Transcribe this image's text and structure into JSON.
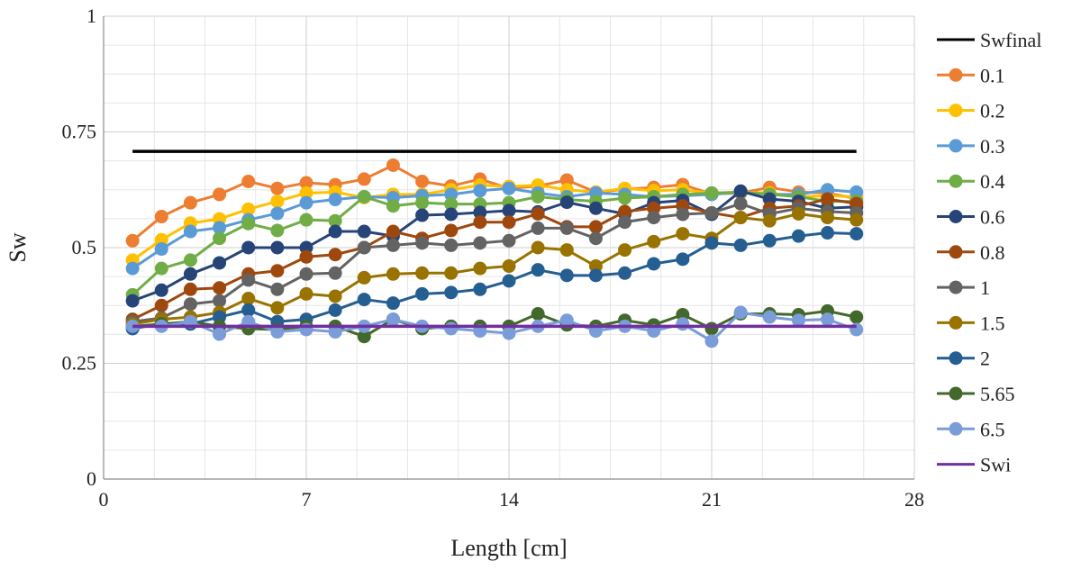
{
  "chart_data": {
    "type": "line",
    "xlabel": "Length [cm]",
    "ylabel": "Sw",
    "xlim": [
      0,
      28
    ],
    "ylim": [
      0,
      1
    ],
    "xticks": [
      "0",
      "7",
      "14",
      "21",
      "28"
    ],
    "yticks": [
      "0",
      "0.25",
      "0.5",
      "0.75",
      "1"
    ],
    "grid": true,
    "legend_position": "right",
    "x": [
      1,
      2,
      3,
      4,
      5,
      6,
      7,
      8,
      9,
      10,
      11,
      12,
      13,
      14,
      15,
      16,
      17,
      18,
      19,
      20,
      21,
      22,
      23,
      24,
      25,
      26
    ],
    "series": [
      {
        "name": "Swfinal",
        "color": "#000000",
        "markers": false,
        "x": [
          1,
          26
        ],
        "values": [
          0.708,
          0.708
        ]
      },
      {
        "name": "0.1",
        "color": "#ED7D31",
        "markers": true,
        "values": [
          0.515,
          0.567,
          0.597,
          0.615,
          0.643,
          0.628,
          0.64,
          0.636,
          0.648,
          0.678,
          0.643,
          0.633,
          0.648,
          0.628,
          0.633,
          0.646,
          0.62,
          0.626,
          0.63,
          0.636,
          0.616,
          0.618,
          0.63,
          0.62,
          0.618,
          0.606
        ]
      },
      {
        "name": "0.2",
        "color": "#FFC000",
        "markers": true,
        "values": [
          0.473,
          0.517,
          0.553,
          0.562,
          0.583,
          0.6,
          0.618,
          0.62,
          0.608,
          0.615,
          0.615,
          0.625,
          0.635,
          0.632,
          0.635,
          0.625,
          0.62,
          0.628,
          0.623,
          0.625,
          0.618,
          0.62,
          0.618,
          0.61,
          0.612,
          0.61
        ]
      },
      {
        "name": "0.3",
        "color": "#5B9BD5",
        "markers": true,
        "values": [
          0.455,
          0.497,
          0.535,
          0.543,
          0.56,
          0.574,
          0.597,
          0.604,
          0.61,
          0.608,
          0.612,
          0.615,
          0.623,
          0.628,
          0.618,
          0.61,
          0.618,
          0.615,
          0.61,
          0.612,
          0.615,
          0.62,
          0.615,
          0.615,
          0.625,
          0.62
        ]
      },
      {
        "name": "0.4",
        "color": "#70AD47",
        "markers": true,
        "values": [
          0.398,
          0.455,
          0.473,
          0.52,
          0.552,
          0.537,
          0.56,
          0.558,
          0.61,
          0.59,
          0.597,
          0.594,
          0.594,
          0.597,
          0.61,
          0.604,
          0.6,
          0.607,
          0.61,
          0.615,
          0.618,
          0.62,
          0.615,
          0.61,
          0.6,
          0.6
        ]
      },
      {
        "name": "0.6",
        "color": "#264478",
        "markers": true,
        "values": [
          0.385,
          0.408,
          0.443,
          0.467,
          0.5,
          0.5,
          0.5,
          0.535,
          0.535,
          0.525,
          0.57,
          0.572,
          0.576,
          0.58,
          0.577,
          0.598,
          0.585,
          0.573,
          0.597,
          0.602,
          0.572,
          0.622,
          0.605,
          0.6,
          0.585,
          0.588
        ]
      },
      {
        "name": "0.8",
        "color": "#9E480E",
        "markers": true,
        "values": [
          0.345,
          0.375,
          0.41,
          0.413,
          0.443,
          0.45,
          0.48,
          0.485,
          0.5,
          0.535,
          0.52,
          0.537,
          0.555,
          0.555,
          0.573,
          0.545,
          0.545,
          0.578,
          0.585,
          0.59,
          0.575,
          0.565,
          0.585,
          0.59,
          0.605,
          0.595
        ]
      },
      {
        "name": "1",
        "color": "#636363",
        "markers": true,
        "values": [
          0.34,
          0.348,
          0.378,
          0.385,
          0.43,
          0.41,
          0.443,
          0.445,
          0.5,
          0.505,
          0.51,
          0.505,
          0.51,
          0.515,
          0.542,
          0.542,
          0.52,
          0.555,
          0.565,
          0.572,
          0.575,
          0.595,
          0.573,
          0.585,
          0.578,
          0.575
        ]
      },
      {
        "name": "1.5",
        "color": "#997300",
        "markers": true,
        "values": [
          0.335,
          0.345,
          0.35,
          0.36,
          0.39,
          0.37,
          0.4,
          0.395,
          0.435,
          0.443,
          0.445,
          0.445,
          0.455,
          0.46,
          0.5,
          0.495,
          0.46,
          0.495,
          0.513,
          0.53,
          0.52,
          0.565,
          0.558,
          0.573,
          0.565,
          0.56
        ]
      },
      {
        "name": "2",
        "color": "#255E91",
        "markers": true,
        "values": [
          0.325,
          0.335,
          0.335,
          0.35,
          0.365,
          0.34,
          0.345,
          0.365,
          0.388,
          0.38,
          0.4,
          0.403,
          0.41,
          0.428,
          0.452,
          0.44,
          0.44,
          0.445,
          0.465,
          0.475,
          0.51,
          0.505,
          0.515,
          0.525,
          0.532,
          0.53
        ]
      },
      {
        "name": "5.65",
        "color": "#43682B",
        "markers": true,
        "values": [
          0.33,
          0.335,
          0.34,
          0.33,
          0.325,
          0.323,
          0.33,
          0.33,
          0.308,
          0.345,
          0.325,
          0.33,
          0.33,
          0.33,
          0.357,
          0.333,
          0.33,
          0.343,
          0.333,
          0.355,
          0.325,
          0.357,
          0.357,
          0.355,
          0.363,
          0.35
        ]
      },
      {
        "name": "6.5",
        "color": "#7A9CD8",
        "markers": true,
        "values": [
          0.33,
          0.33,
          0.34,
          0.313,
          0.34,
          0.318,
          0.323,
          0.318,
          0.33,
          0.345,
          0.33,
          0.325,
          0.32,
          0.315,
          0.33,
          0.343,
          0.32,
          0.33,
          0.32,
          0.335,
          0.298,
          0.36,
          0.35,
          0.343,
          0.345,
          0.323
        ]
      },
      {
        "name": "Swi",
        "color": "#7030A0",
        "markers": false,
        "x": [
          1,
          26
        ],
        "values": [
          0.33,
          0.33
        ]
      }
    ]
  }
}
